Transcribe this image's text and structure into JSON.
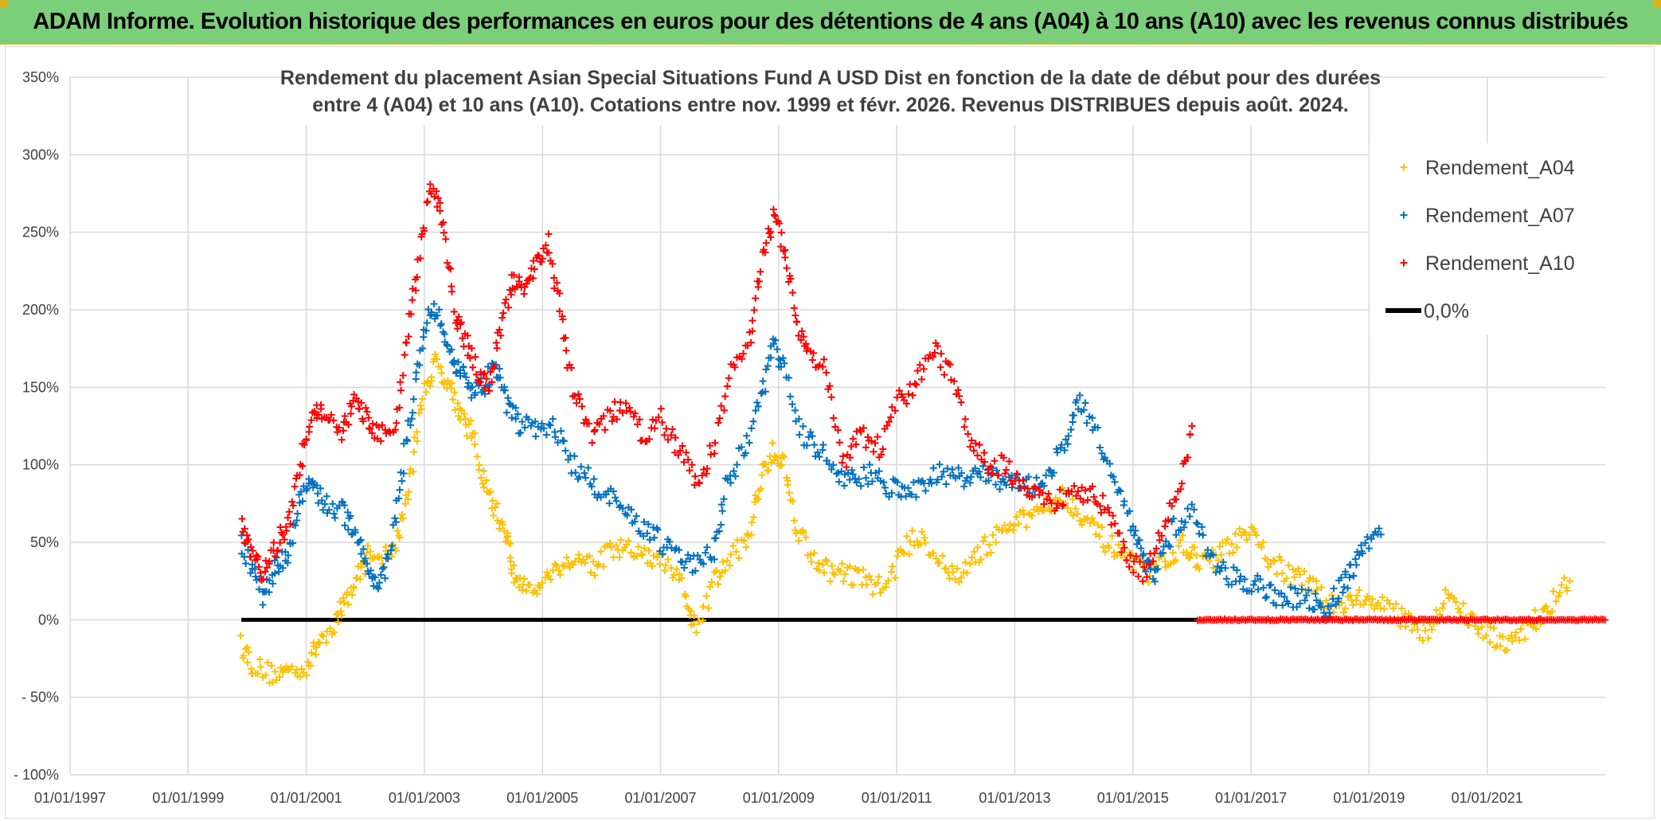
{
  "banner": {
    "title": "ADAM Informe. Evolution historique des performances en euros pour des détentions de 4 ans (A04) à 10 ans (A10) avec les revenus connus distribués"
  },
  "colors": {
    "banner_bg": "#7ccf7a",
    "a04": "#ffc000",
    "a07": "#0070c0",
    "a10": "#ff0000",
    "zero": "#000000"
  },
  "chart_data": {
    "type": "scatter",
    "title_lines": [
      "Rendement du placement Asian Special Situations Fund A USD Dist en fonction de la date de début pour des durées",
      "entre 4 (A04) et 10 ans (A10). Cotations entre nov. 1999 et févr. 2026. Revenus DISTRIBUES depuis août. 2024."
    ],
    "x_tick_labels": [
      "01/01/1997",
      "01/01/1999",
      "01/01/2001",
      "01/01/2003",
      "01/01/2005",
      "01/01/2007",
      "01/01/2009",
      "01/01/2011",
      "01/01/2013",
      "01/01/2015",
      "01/01/2017",
      "01/01/2019",
      "01/01/2021"
    ],
    "xlim": [
      1997.0,
      2023.0
    ],
    "y_tick_labels": [
      "- 100%",
      "- 50%",
      "0%",
      "50%",
      "100%",
      "150%",
      "200%",
      "250%",
      "300%",
      "350%"
    ],
    "y_ticks": [
      -100,
      -50,
      0,
      50,
      100,
      150,
      200,
      250,
      300,
      350
    ],
    "ylim": [
      -100,
      350
    ],
    "legend_position": "top-right",
    "series": [
      {
        "name": "Rendement_A04",
        "marker": "+",
        "x_range": [
          1999.9,
          2022.4
        ],
        "points": [
          [
            1999.9,
            -15
          ],
          [
            2000.1,
            -30
          ],
          [
            2000.4,
            -35
          ],
          [
            2000.7,
            -33
          ],
          [
            2001.0,
            -30
          ],
          [
            2001.2,
            -15
          ],
          [
            2001.5,
            0
          ],
          [
            2001.7,
            15
          ],
          [
            2001.9,
            30
          ],
          [
            2002.1,
            45
          ],
          [
            2002.4,
            40
          ],
          [
            2002.6,
            60
          ],
          [
            2002.8,
            100
          ],
          [
            2003.0,
            150
          ],
          [
            2003.2,
            165
          ],
          [
            2003.4,
            155
          ],
          [
            2003.6,
            135
          ],
          [
            2003.8,
            120
          ],
          [
            2004.0,
            90
          ],
          [
            2004.2,
            70
          ],
          [
            2004.4,
            55
          ],
          [
            2004.5,
            30
          ],
          [
            2004.7,
            20
          ],
          [
            2005.0,
            25
          ],
          [
            2005.3,
            35
          ],
          [
            2005.6,
            40
          ],
          [
            2005.9,
            35
          ],
          [
            2006.2,
            45
          ],
          [
            2006.5,
            45
          ],
          [
            2006.8,
            40
          ],
          [
            2007.1,
            35
          ],
          [
            2007.4,
            20
          ],
          [
            2007.6,
            -10
          ],
          [
            2007.9,
            25
          ],
          [
            2008.2,
            40
          ],
          [
            2008.5,
            55
          ],
          [
            2008.7,
            90
          ],
          [
            2008.9,
            110
          ],
          [
            2009.1,
            100
          ],
          [
            2009.3,
            60
          ],
          [
            2009.6,
            40
          ],
          [
            2009.9,
            30
          ],
          [
            2010.2,
            30
          ],
          [
            2010.5,
            25
          ],
          [
            2010.8,
            20
          ],
          [
            2011.1,
            45
          ],
          [
            2011.4,
            55
          ],
          [
            2011.7,
            40
          ],
          [
            2012.0,
            25
          ],
          [
            2012.3,
            40
          ],
          [
            2012.6,
            50
          ],
          [
            2012.9,
            60
          ],
          [
            2013.2,
            65
          ],
          [
            2013.5,
            75
          ],
          [
            2013.8,
            80
          ],
          [
            2014.1,
            70
          ],
          [
            2014.4,
            55
          ],
          [
            2014.7,
            45
          ],
          [
            2015.0,
            35
          ],
          [
            2015.3,
            30
          ],
          [
            2015.6,
            40
          ],
          [
            2015.9,
            50
          ],
          [
            2016.1,
            35
          ],
          [
            2016.4,
            40
          ],
          [
            2016.7,
            50
          ],
          [
            2017.0,
            55
          ],
          [
            2017.3,
            40
          ],
          [
            2017.6,
            30
          ],
          [
            2017.9,
            25
          ],
          [
            2018.2,
            15
          ],
          [
            2018.5,
            10
          ],
          [
            2018.8,
            15
          ],
          [
            2019.1,
            10
          ],
          [
            2019.4,
            5
          ],
          [
            2019.7,
            0
          ],
          [
            2020.0,
            -10
          ],
          [
            2020.3,
            15
          ],
          [
            2020.6,
            5
          ],
          [
            2020.9,
            -5
          ],
          [
            2021.2,
            -15
          ],
          [
            2021.5,
            -10
          ],
          [
            2021.8,
            0
          ],
          [
            2022.1,
            10
          ],
          [
            2022.4,
            25
          ]
        ]
      },
      {
        "name": "Rendement_A07",
        "marker": "+",
        "x_range": [
          1999.9,
          2019.2
        ],
        "points": [
          [
            1999.9,
            50
          ],
          [
            2000.1,
            30
          ],
          [
            2000.3,
            15
          ],
          [
            2000.5,
            35
          ],
          [
            2000.7,
            40
          ],
          [
            2000.9,
            80
          ],
          [
            2001.1,
            90
          ],
          [
            2001.3,
            75
          ],
          [
            2001.6,
            70
          ],
          [
            2001.8,
            60
          ],
          [
            2002.0,
            40
          ],
          [
            2002.2,
            20
          ],
          [
            2002.4,
            40
          ],
          [
            2002.6,
            90
          ],
          [
            2002.8,
            140
          ],
          [
            2003.0,
            190
          ],
          [
            2003.2,
            200
          ],
          [
            2003.4,
            170
          ],
          [
            2003.6,
            160
          ],
          [
            2003.8,
            150
          ],
          [
            2004.0,
            150
          ],
          [
            2004.2,
            165
          ],
          [
            2004.4,
            140
          ],
          [
            2004.6,
            125
          ],
          [
            2004.9,
            125
          ],
          [
            2005.2,
            125
          ],
          [
            2005.5,
            100
          ],
          [
            2005.8,
            90
          ],
          [
            2006.1,
            80
          ],
          [
            2006.4,
            70
          ],
          [
            2006.7,
            60
          ],
          [
            2007.0,
            50
          ],
          [
            2007.3,
            40
          ],
          [
            2007.6,
            35
          ],
          [
            2007.9,
            45
          ],
          [
            2008.1,
            85
          ],
          [
            2008.4,
            110
          ],
          [
            2008.7,
            140
          ],
          [
            2008.9,
            180
          ],
          [
            2009.1,
            160
          ],
          [
            2009.4,
            120
          ],
          [
            2009.7,
            110
          ],
          [
            2010.0,
            95
          ],
          [
            2010.3,
            90
          ],
          [
            2010.6,
            95
          ],
          [
            2010.9,
            85
          ],
          [
            2011.2,
            80
          ],
          [
            2011.5,
            90
          ],
          [
            2011.8,
            95
          ],
          [
            2012.1,
            90
          ],
          [
            2012.4,
            95
          ],
          [
            2012.7,
            90
          ],
          [
            2013.0,
            90
          ],
          [
            2013.3,
            85
          ],
          [
            2013.6,
            95
          ],
          [
            2013.9,
            120
          ],
          [
            2014.1,
            140
          ],
          [
            2014.4,
            120
          ],
          [
            2014.7,
            90
          ],
          [
            2015.0,
            60
          ],
          [
            2015.2,
            35
          ],
          [
            2015.4,
            30
          ],
          [
            2015.7,
            60
          ],
          [
            2016.0,
            70
          ],
          [
            2016.3,
            40
          ],
          [
            2016.6,
            30
          ],
          [
            2016.9,
            25
          ],
          [
            2017.2,
            20
          ],
          [
            2017.5,
            15
          ],
          [
            2017.8,
            15
          ],
          [
            2018.1,
            10
          ],
          [
            2018.3,
            5
          ],
          [
            2018.5,
            20
          ],
          [
            2018.7,
            30
          ],
          [
            2018.9,
            45
          ],
          [
            2019.2,
            55
          ]
        ]
      },
      {
        "name": "Rendement_A10",
        "marker": "+",
        "x_range": [
          1999.9,
          2016.1
        ],
        "points": [
          [
            1999.9,
            60
          ],
          [
            2000.1,
            40
          ],
          [
            2000.3,
            30
          ],
          [
            2000.5,
            50
          ],
          [
            2000.7,
            60
          ],
          [
            2000.9,
            100
          ],
          [
            2001.1,
            140
          ],
          [
            2001.3,
            130
          ],
          [
            2001.6,
            120
          ],
          [
            2001.8,
            140
          ],
          [
            2002.0,
            130
          ],
          [
            2002.2,
            120
          ],
          [
            2002.5,
            120
          ],
          [
            2002.7,
            180
          ],
          [
            2002.9,
            230
          ],
          [
            2003.1,
            280
          ],
          [
            2003.3,
            260
          ],
          [
            2003.5,
            200
          ],
          [
            2003.7,
            180
          ],
          [
            2003.9,
            160
          ],
          [
            2004.1,
            150
          ],
          [
            2004.3,
            190
          ],
          [
            2004.5,
            220
          ],
          [
            2004.7,
            210
          ],
          [
            2004.9,
            230
          ],
          [
            2005.1,
            245
          ],
          [
            2005.3,
            200
          ],
          [
            2005.5,
            150
          ],
          [
            2005.8,
            120
          ],
          [
            2006.1,
            130
          ],
          [
            2006.4,
            140
          ],
          [
            2006.7,
            120
          ],
          [
            2007.0,
            130
          ],
          [
            2007.3,
            110
          ],
          [
            2007.6,
            90
          ],
          [
            2007.9,
            110
          ],
          [
            2008.2,
            160
          ],
          [
            2008.5,
            180
          ],
          [
            2008.7,
            230
          ],
          [
            2008.9,
            260
          ],
          [
            2009.1,
            240
          ],
          [
            2009.3,
            195
          ],
          [
            2009.5,
            170
          ],
          [
            2009.8,
            160
          ],
          [
            2010.1,
            100
          ],
          [
            2010.4,
            120
          ],
          [
            2010.7,
            110
          ],
          [
            2011.0,
            140
          ],
          [
            2011.3,
            150
          ],
          [
            2011.6,
            175
          ],
          [
            2011.9,
            160
          ],
          [
            2012.2,
            120
          ],
          [
            2012.5,
            100
          ],
          [
            2012.8,
            100
          ],
          [
            2013.1,
            90
          ],
          [
            2013.4,
            80
          ],
          [
            2013.7,
            75
          ],
          [
            2014.0,
            85
          ],
          [
            2014.3,
            80
          ],
          [
            2014.6,
            70
          ],
          [
            2014.9,
            40
          ],
          [
            2015.2,
            30
          ],
          [
            2015.5,
            60
          ],
          [
            2015.8,
            85
          ],
          [
            2016.0,
            125
          ]
        ]
      },
      {
        "name": "0,0%",
        "marker": "line",
        "x_range": [
          1999.9,
          2016.1
        ],
        "value": 0
      }
    ],
    "a10_zero_band_x_range": [
      2016.1,
      2023.0
    ]
  }
}
